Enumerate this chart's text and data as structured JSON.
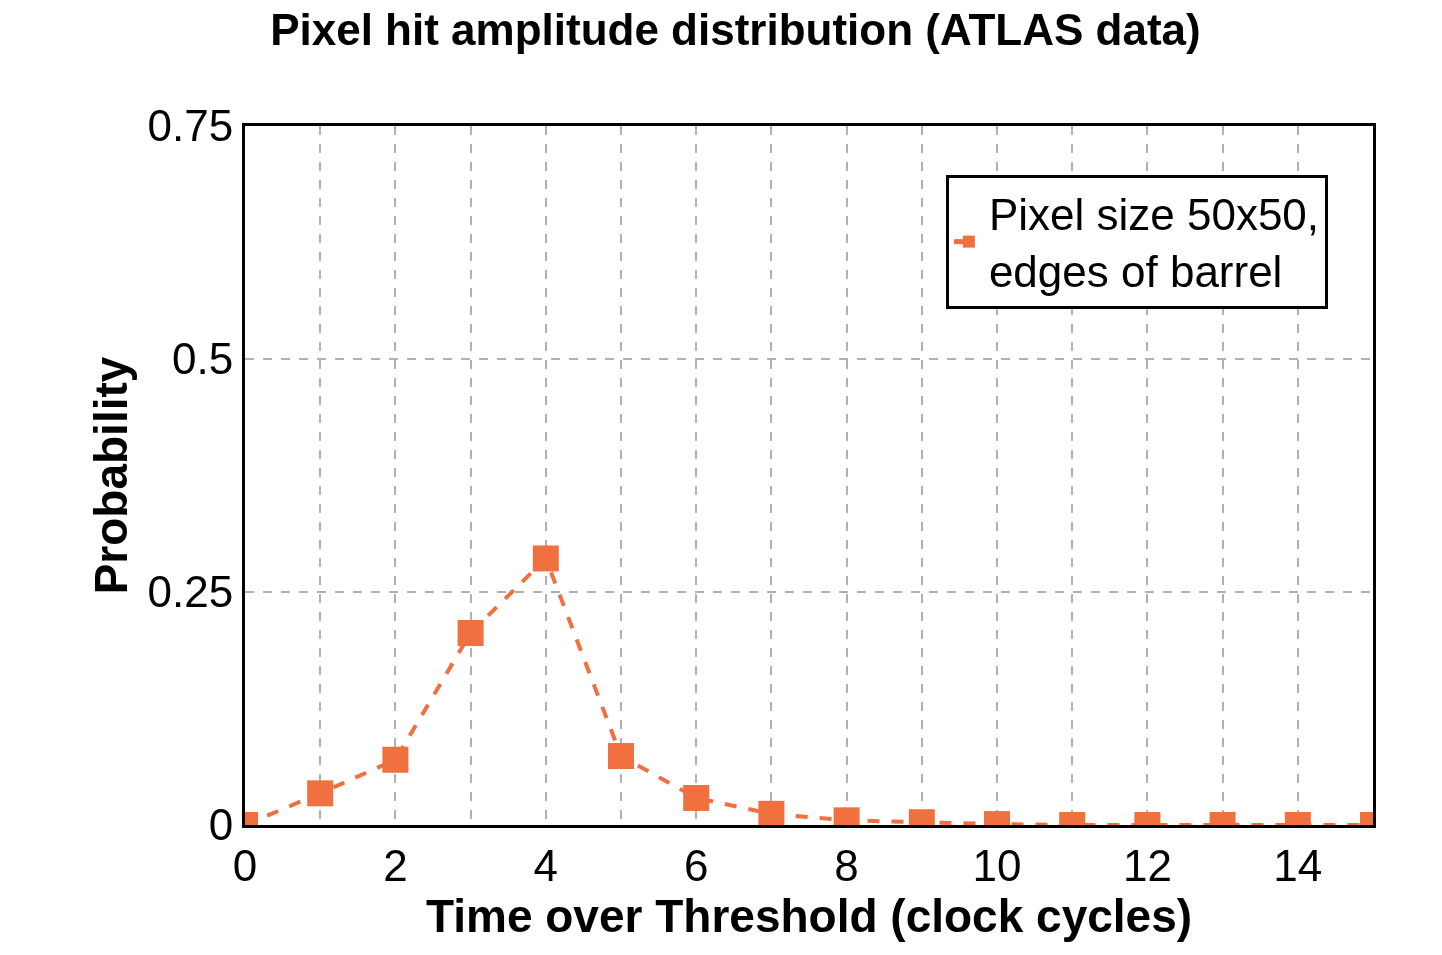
{
  "chart_data": {
    "type": "line",
    "title": "Pixel hit amplitude distribution (ATLAS data)",
    "xlabel": "Time over Threshold (clock cycles)",
    "ylabel": "Probability",
    "x": [
      0,
      1,
      2,
      3,
      4,
      5,
      6,
      7,
      8,
      9,
      10,
      11,
      12,
      13,
      14,
      15
    ],
    "series": [
      {
        "name": "Pixel size 50x50,\nedges of barrel",
        "color": "#f07040",
        "values": [
          0,
          0.034,
          0.07,
          0.206,
          0.286,
          0.074,
          0.029,
          0.012,
          0.005,
          0.003,
          0.001,
          0,
          0,
          0,
          0,
          0
        ]
      }
    ],
    "xlim": [
      0,
      15
    ],
    "xticks": [
      0,
      {
        "value": 1,
        "label": null
      },
      2,
      {
        "value": 3,
        "label": null
      },
      4,
      {
        "value": 5,
        "label": null
      },
      6,
      {
        "value": 7,
        "label": null
      },
      8,
      {
        "value": 9,
        "label": null
      },
      10,
      {
        "value": 11,
        "label": null
      },
      12,
      {
        "value": 13,
        "label": null
      },
      14,
      {
        "value": 15,
        "label": null
      }
    ],
    "ylim": [
      0,
      0.75
    ],
    "yticks": [
      0,
      0.25,
      0.5,
      0.75
    ],
    "grid": true,
    "legend": "top right",
    "marker": "square",
    "line_style": "dashed"
  }
}
